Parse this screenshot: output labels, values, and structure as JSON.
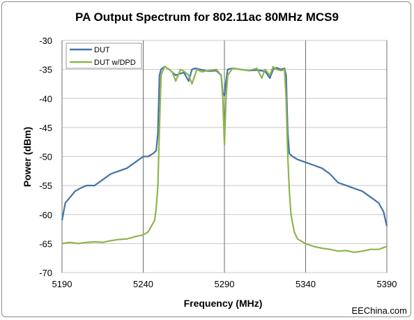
{
  "chart_data": {
    "type": "line",
    "title": "PA Output Spectrum for 802.11ac 80MHz MCS9",
    "xlabel": "Frequency (MHz)",
    "ylabel": "Power (dBm)",
    "xlim": [
      5190,
      5390
    ],
    "ylim": [
      -70,
      -30
    ],
    "x_ticks": [
      5190,
      5240,
      5290,
      5340,
      5390
    ],
    "y_ticks": [
      -30,
      -35,
      -40,
      -45,
      -50,
      -55,
      -60,
      -65,
      -70
    ],
    "grid": {
      "vertical": true,
      "horizontal": true
    },
    "legend": "top-left",
    "series": [
      {
        "name": "DUT",
        "color": "#4472a8",
        "x": [
          5190,
          5192,
          5195,
          5198,
          5201,
          5205,
          5210,
          5215,
          5220,
          5225,
          5230,
          5235,
          5240,
          5243,
          5246,
          5248,
          5249,
          5250,
          5251,
          5253,
          5256,
          5260,
          5265,
          5268,
          5270,
          5272,
          5275,
          5280,
          5285,
          5288,
          5289,
          5290,
          5291,
          5292,
          5295,
          5300,
          5305,
          5310,
          5315,
          5318,
          5320,
          5322,
          5325,
          5327,
          5328,
          5329,
          5330,
          5332,
          5335,
          5340,
          5345,
          5350,
          5355,
          5360,
          5365,
          5370,
          5375,
          5380,
          5385,
          5388,
          5390
        ],
        "y": [
          -61,
          -58,
          -57,
          -56,
          -55.5,
          -55,
          -55,
          -54,
          -53,
          -52.5,
          -52,
          -51,
          -50,
          -50,
          -49.5,
          -49,
          -46,
          -36,
          -35,
          -34.5,
          -35,
          -36,
          -35.5,
          -37,
          -35,
          -34.8,
          -35,
          -35.3,
          -35.2,
          -36,
          -39,
          -39.5,
          -37,
          -35,
          -34.8,
          -35,
          -35.2,
          -35.1,
          -35.3,
          -36.5,
          -35,
          -34.7,
          -35,
          -34.8,
          -36,
          -46,
          -49.5,
          -50,
          -50.5,
          -51,
          -51.5,
          -52,
          -53,
          -54.5,
          -55,
          -55.5,
          -56,
          -57,
          -58,
          -59.5,
          -62
        ]
      },
      {
        "name": "DUT w/DPD",
        "color": "#8db54e",
        "x": [
          5190,
          5195,
          5200,
          5205,
          5210,
          5215,
          5220,
          5225,
          5230,
          5235,
          5240,
          5243,
          5245,
          5247,
          5248,
          5249,
          5250,
          5251,
          5253,
          5256,
          5258,
          5260,
          5263,
          5265,
          5268,
          5270,
          5273,
          5276,
          5280,
          5285,
          5288,
          5289,
          5290,
          5291,
          5292,
          5295,
          5300,
          5305,
          5310,
          5313,
          5315,
          5318,
          5320,
          5322,
          5325,
          5327,
          5328,
          5329,
          5330,
          5331,
          5333,
          5335,
          5340,
          5345,
          5350,
          5355,
          5360,
          5365,
          5370,
          5375,
          5380,
          5385,
          5390
        ],
        "y": [
          -65,
          -64.8,
          -65,
          -64.8,
          -64.7,
          -64.8,
          -64.5,
          -64.3,
          -64.2,
          -63.8,
          -63.5,
          -63,
          -62,
          -61,
          -59,
          -55,
          -45,
          -36,
          -34.5,
          -35,
          -35.5,
          -37,
          -35,
          -35.3,
          -36,
          -37.5,
          -35,
          -35.4,
          -35.2,
          -35,
          -36,
          -40,
          -48,
          -40,
          -36,
          -34.8,
          -35,
          -35.2,
          -34.8,
          -36.5,
          -35,
          -36,
          -34.5,
          -35,
          -35.2,
          -35,
          -40,
          -50,
          -56,
          -60,
          -63,
          -64.2,
          -65,
          -65.5,
          -65.8,
          -66,
          -66.3,
          -66.2,
          -66.5,
          -66.3,
          -66,
          -66,
          -65.5
        ]
      }
    ]
  },
  "credit": "EEChina.com"
}
